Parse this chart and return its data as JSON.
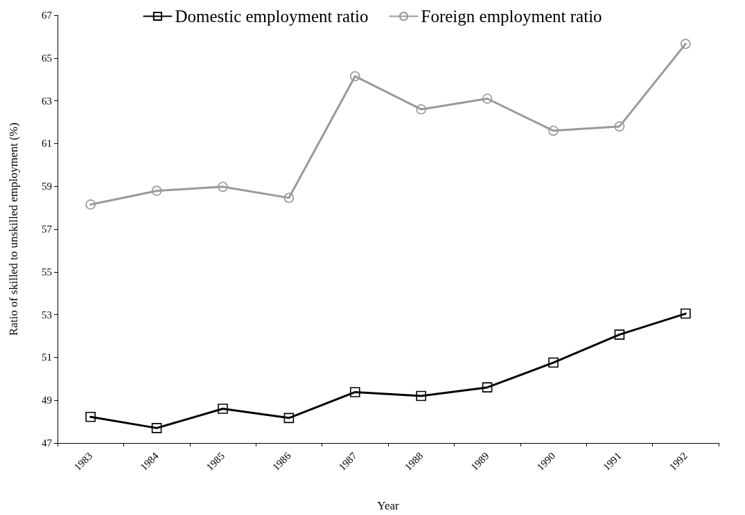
{
  "chart_data": {
    "type": "line",
    "xlabel": "Year",
    "ylabel": "Ratio of skilled to unskilled employment (%)",
    "categories": [
      "1983",
      "1984",
      "1985",
      "1986",
      "1987",
      "1988",
      "1989",
      "1990",
      "1991",
      "1992"
    ],
    "series": [
      {
        "name": "Domestic employment ratio",
        "color": "#000000",
        "marker": "square",
        "values": [
          48.22,
          47.7,
          48.6,
          48.17,
          49.38,
          49.2,
          49.6,
          50.76,
          52.07,
          53.05
        ]
      },
      {
        "name": "Foreign employment ratio",
        "color": "#999999",
        "marker": "circle",
        "values": [
          58.15,
          58.79,
          58.98,
          58.46,
          64.15,
          62.6,
          63.1,
          61.6,
          61.8,
          65.66
        ]
      }
    ],
    "ylim": [
      47,
      67
    ],
    "yticks": [
      47,
      49,
      51,
      53,
      55,
      57,
      59,
      61,
      63,
      65,
      67
    ],
    "grid": false,
    "legend": "top",
    "line_style": "solid"
  }
}
